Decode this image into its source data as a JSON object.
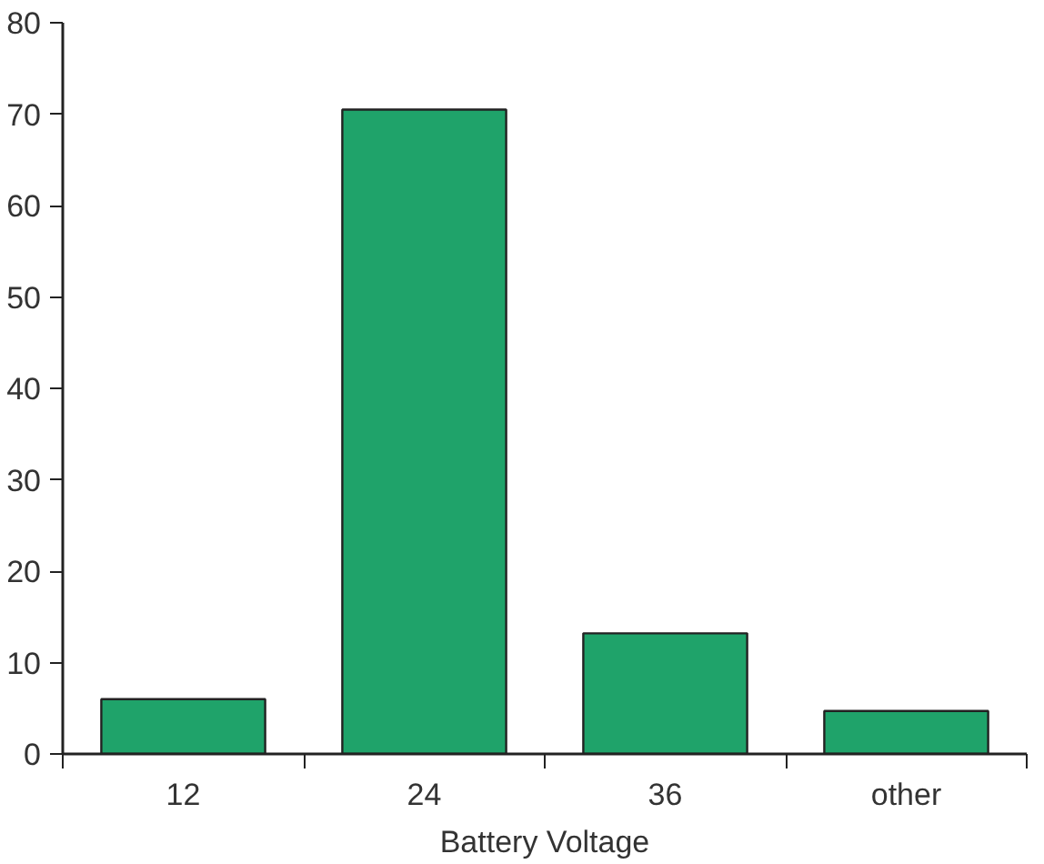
{
  "chart_data": {
    "type": "bar",
    "xlabel": "Battery Voltage",
    "categories": [
      "12",
      "24",
      "36",
      "other"
    ],
    "values": [
      6,
      70.5,
      13.2,
      4.7
    ],
    "color": "#1fa36a",
    "ylim": [
      0,
      80
    ],
    "yticks": [
      0,
      10,
      20,
      30,
      40,
      50,
      60,
      70,
      80
    ],
    "grid": false
  }
}
